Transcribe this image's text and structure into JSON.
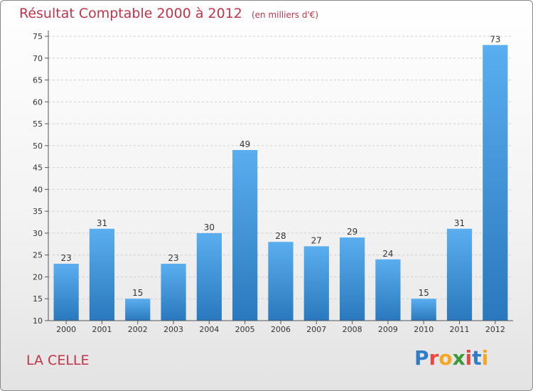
{
  "chart_data": {
    "type": "bar",
    "title": "Résultat Comptable 2000 à 2012",
    "subtitle": "(en milliers d'€)",
    "categories": [
      "2000",
      "2001",
      "2002",
      "2003",
      "2004",
      "2005",
      "2006",
      "2007",
      "2008",
      "2009",
      "2010",
      "2011",
      "2012"
    ],
    "values": [
      23,
      31,
      15,
      23,
      30,
      49,
      28,
      27,
      29,
      24,
      15,
      31,
      73
    ],
    "ylim": [
      10,
      75
    ],
    "yticks": [
      10,
      15,
      20,
      25,
      30,
      35,
      40,
      45,
      50,
      55,
      60,
      65,
      70,
      75
    ],
    "grid": true,
    "bar_color": "#3a91d6"
  },
  "commune": "LA CELLE",
  "logo": {
    "text": "Proxiti",
    "letters": [
      {
        "ch": "P",
        "color": "#2f7dc8"
      },
      {
        "ch": "r",
        "color": "#e8483f"
      },
      {
        "ch": "o",
        "color": "#f5a623"
      },
      {
        "ch": "x",
        "color": "#3a9a3a"
      },
      {
        "ch": "i",
        "color": "#e8483f"
      },
      {
        "ch": "t",
        "color": "#2f7dc8"
      },
      {
        "ch": "i",
        "color": "#f5a623"
      }
    ]
  }
}
